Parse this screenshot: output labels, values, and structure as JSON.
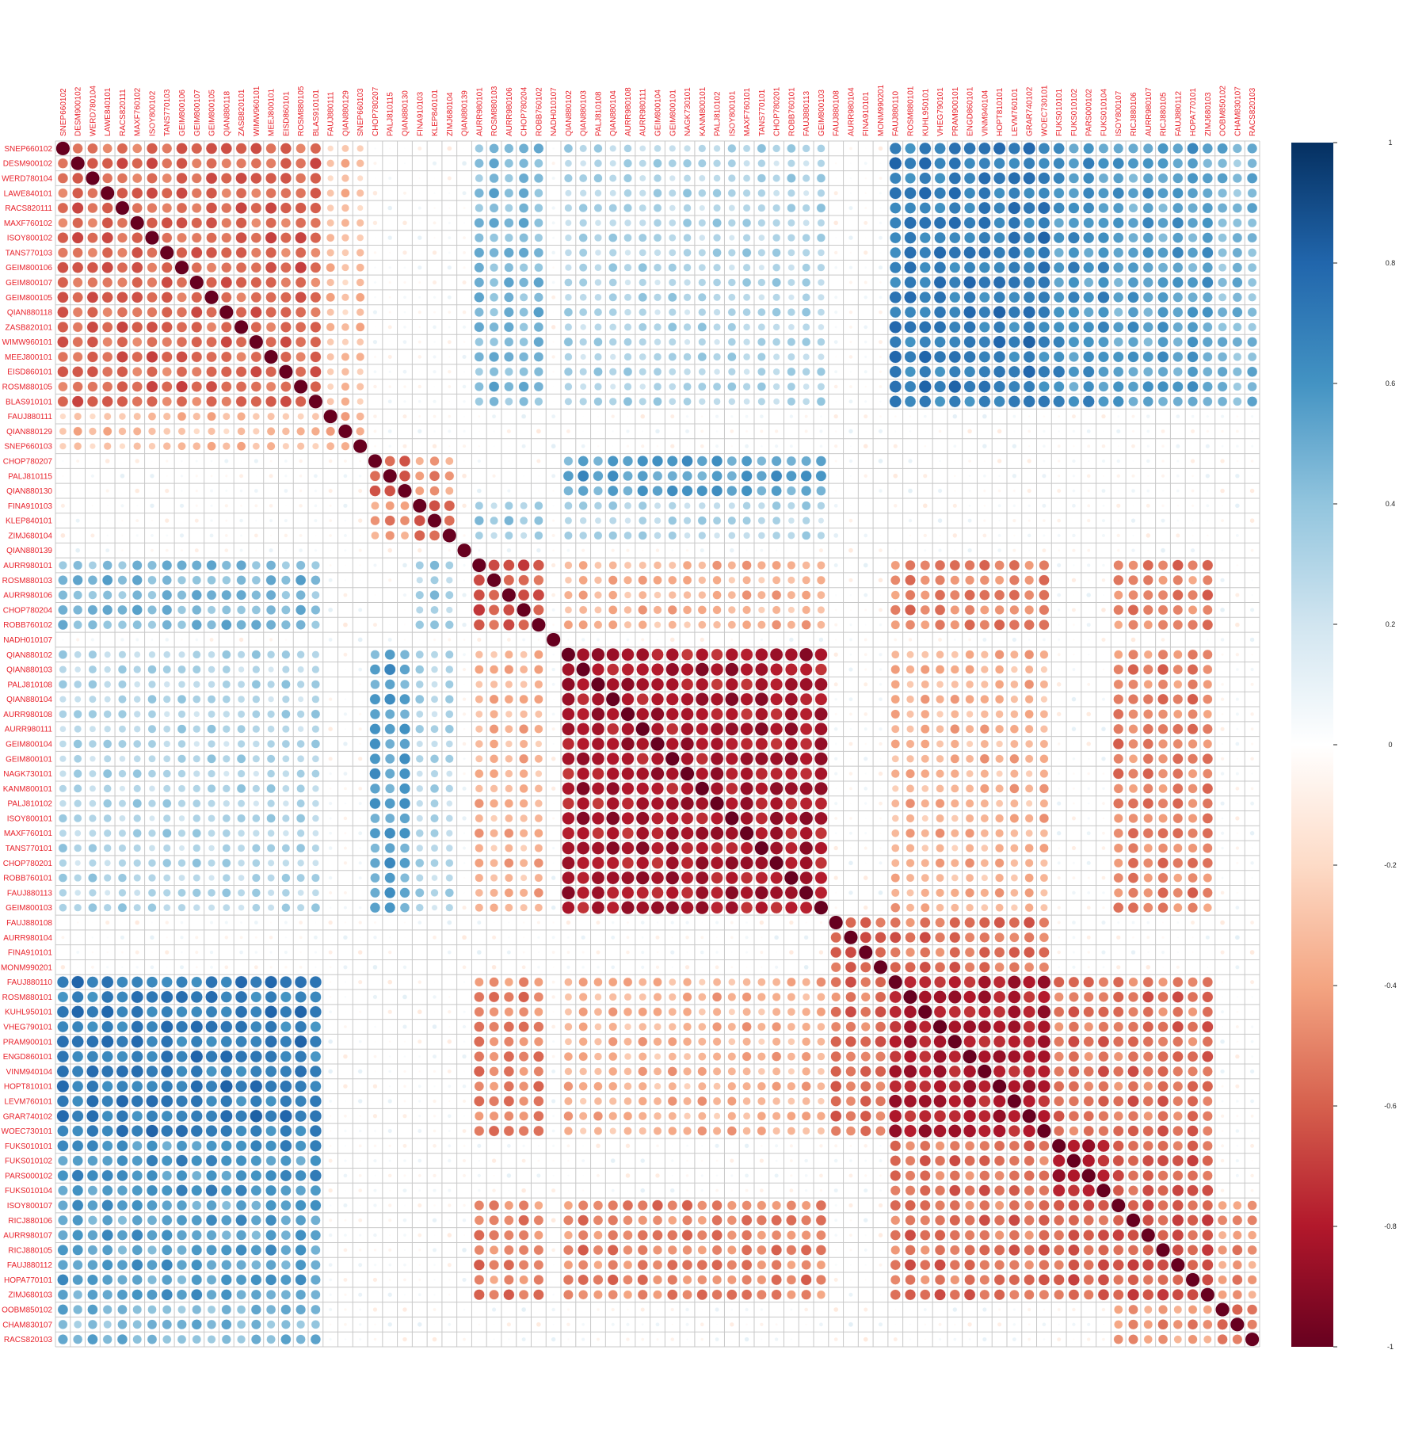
{
  "chart_data": {
    "type": "heatmap",
    "subtype": "correlation-circle-matrix",
    "title": "",
    "variables": [
      "SNEP660102",
      "DESM900102",
      "WERD780104",
      "LAWE840101",
      "RACS820111",
      "MAXF760102",
      "ISOY800102",
      "TANS770103",
      "GEIM800106",
      "GEIM800107",
      "GEIM800105",
      "QIAN880118",
      "ZASB820101",
      "WIMW960101",
      "MEEJ800101",
      "EISD860101",
      "ROSM880105",
      "BLAS910101",
      "FAUJ880111",
      "QIAN880129",
      "SNEP660103",
      "CHOP780207",
      "PALJ810115",
      "QIAN880130",
      "FINA910103",
      "KLEP840101",
      "ZIMJ680104",
      "QIAN880139",
      "AURR980101",
      "ROSM880103",
      "AURR980106",
      "CHOP780204",
      "ROBB760102",
      "NADH010107",
      "QIAN880102",
      "QIAN880103",
      "PALJ810108",
      "QIAN880104",
      "AURR980108",
      "AURR980111",
      "GEIM800104",
      "GEIM800101",
      "NAGK730101",
      "KANM800101",
      "PALJ810102",
      "ISOY800101",
      "MAXF760101",
      "TANS770101",
      "CHOP780201",
      "ROBB760101",
      "FAUJ880113",
      "GEIM800103",
      "FAUJ880108",
      "AURR980104",
      "FINA910101",
      "MONM990201",
      "FAUJ880110",
      "ROSM880101",
      "KUHL950101",
      "VHEG790101",
      "PRAM900101",
      "ENGD860101",
      "VINM940104",
      "HOPT810101",
      "LEVM760101",
      "GRAR740102",
      "WOEC730101",
      "FUKS010101",
      "FUKS010102",
      "PARS000102",
      "FUKS010104",
      "ISOY800107",
      "RICJ880106",
      "AURR980107",
      "RICJ880105",
      "FAUJ880112",
      "HOPA770101",
      "ZIMJ680103",
      "OOBM850102",
      "CHAM830107",
      "RACS820103"
    ],
    "clusters": [
      {
        "start": 0,
        "end": 17,
        "within": 0.58
      },
      {
        "start": 18,
        "end": 20,
        "within": 0.4
      },
      {
        "start": 21,
        "end": 23,
        "within": 0.6
      },
      {
        "start": 24,
        "end": 26,
        "within": 0.6
      },
      {
        "start": 27,
        "end": 27,
        "within": 1
      },
      {
        "start": 28,
        "end": 32,
        "within": 0.62
      },
      {
        "start": 33,
        "end": 33,
        "within": 1
      },
      {
        "start": 34,
        "end": 51,
        "within": 0.82
      },
      {
        "start": 52,
        "end": 55,
        "within": 0.62
      },
      {
        "start": 56,
        "end": 66,
        "within": 0.8
      },
      {
        "start": 67,
        "end": 70,
        "within": 0.8
      },
      {
        "start": 71,
        "end": 77,
        "within": 0.62
      },
      {
        "start": 78,
        "end": 80,
        "within": 0.55
      }
    ],
    "between": [
      {
        "a": 0,
        "b": 5,
        "r": -0.45
      },
      {
        "a": 0,
        "b": 7,
        "r": -0.3
      },
      {
        "a": 0,
        "b": 9,
        "r": -0.7
      },
      {
        "a": 0,
        "b": 10,
        "r": -0.6
      },
      {
        "a": 0,
        "b": 11,
        "r": -0.55
      },
      {
        "a": 0,
        "b": 12,
        "r": -0.45
      },
      {
        "a": 0,
        "b": 1,
        "r": 0.3
      },
      {
        "a": 2,
        "b": 7,
        "r": -0.55
      },
      {
        "a": 3,
        "b": 7,
        "r": -0.3
      },
      {
        "a": 2,
        "b": 3,
        "r": 0.45
      },
      {
        "a": 3,
        "b": 5,
        "r": -0.35
      },
      {
        "a": 5,
        "b": 7,
        "r": 0.35
      },
      {
        "a": 5,
        "b": 9,
        "r": 0.5
      },
      {
        "a": 5,
        "b": 11,
        "r": 0.5
      },
      {
        "a": 7,
        "b": 9,
        "r": 0.35
      },
      {
        "a": 7,
        "b": 11,
        "r": 0.5
      },
      {
        "a": 8,
        "b": 9,
        "r": 0.55
      },
      {
        "a": 9,
        "b": 10,
        "r": 0.55
      },
      {
        "a": 9,
        "b": 11,
        "r": 0.55
      },
      {
        "a": 10,
        "b": 11,
        "r": 0.6
      },
      {
        "a": 11,
        "b": 12,
        "r": 0.45
      }
    ],
    "colorbar": {
      "ticks": [
        "1",
        "0.8",
        "0.6",
        "0.4",
        "0.2",
        "0",
        "-0.2",
        "-0.4",
        "-0.6",
        "-0.8",
        "-1"
      ],
      "range": [
        -1,
        1
      ],
      "colors": [
        "#67001f",
        "#b2182b",
        "#d6604d",
        "#f4a582",
        "#fddbc7",
        "#ffffff",
        "#d1e5f0",
        "#92c5de",
        "#4393c3",
        "#2166ac",
        "#053061"
      ]
    },
    "label_color": "#e8222b",
    "grid_color": "#c8c8c8",
    "grid": true,
    "legend_position": "right"
  }
}
